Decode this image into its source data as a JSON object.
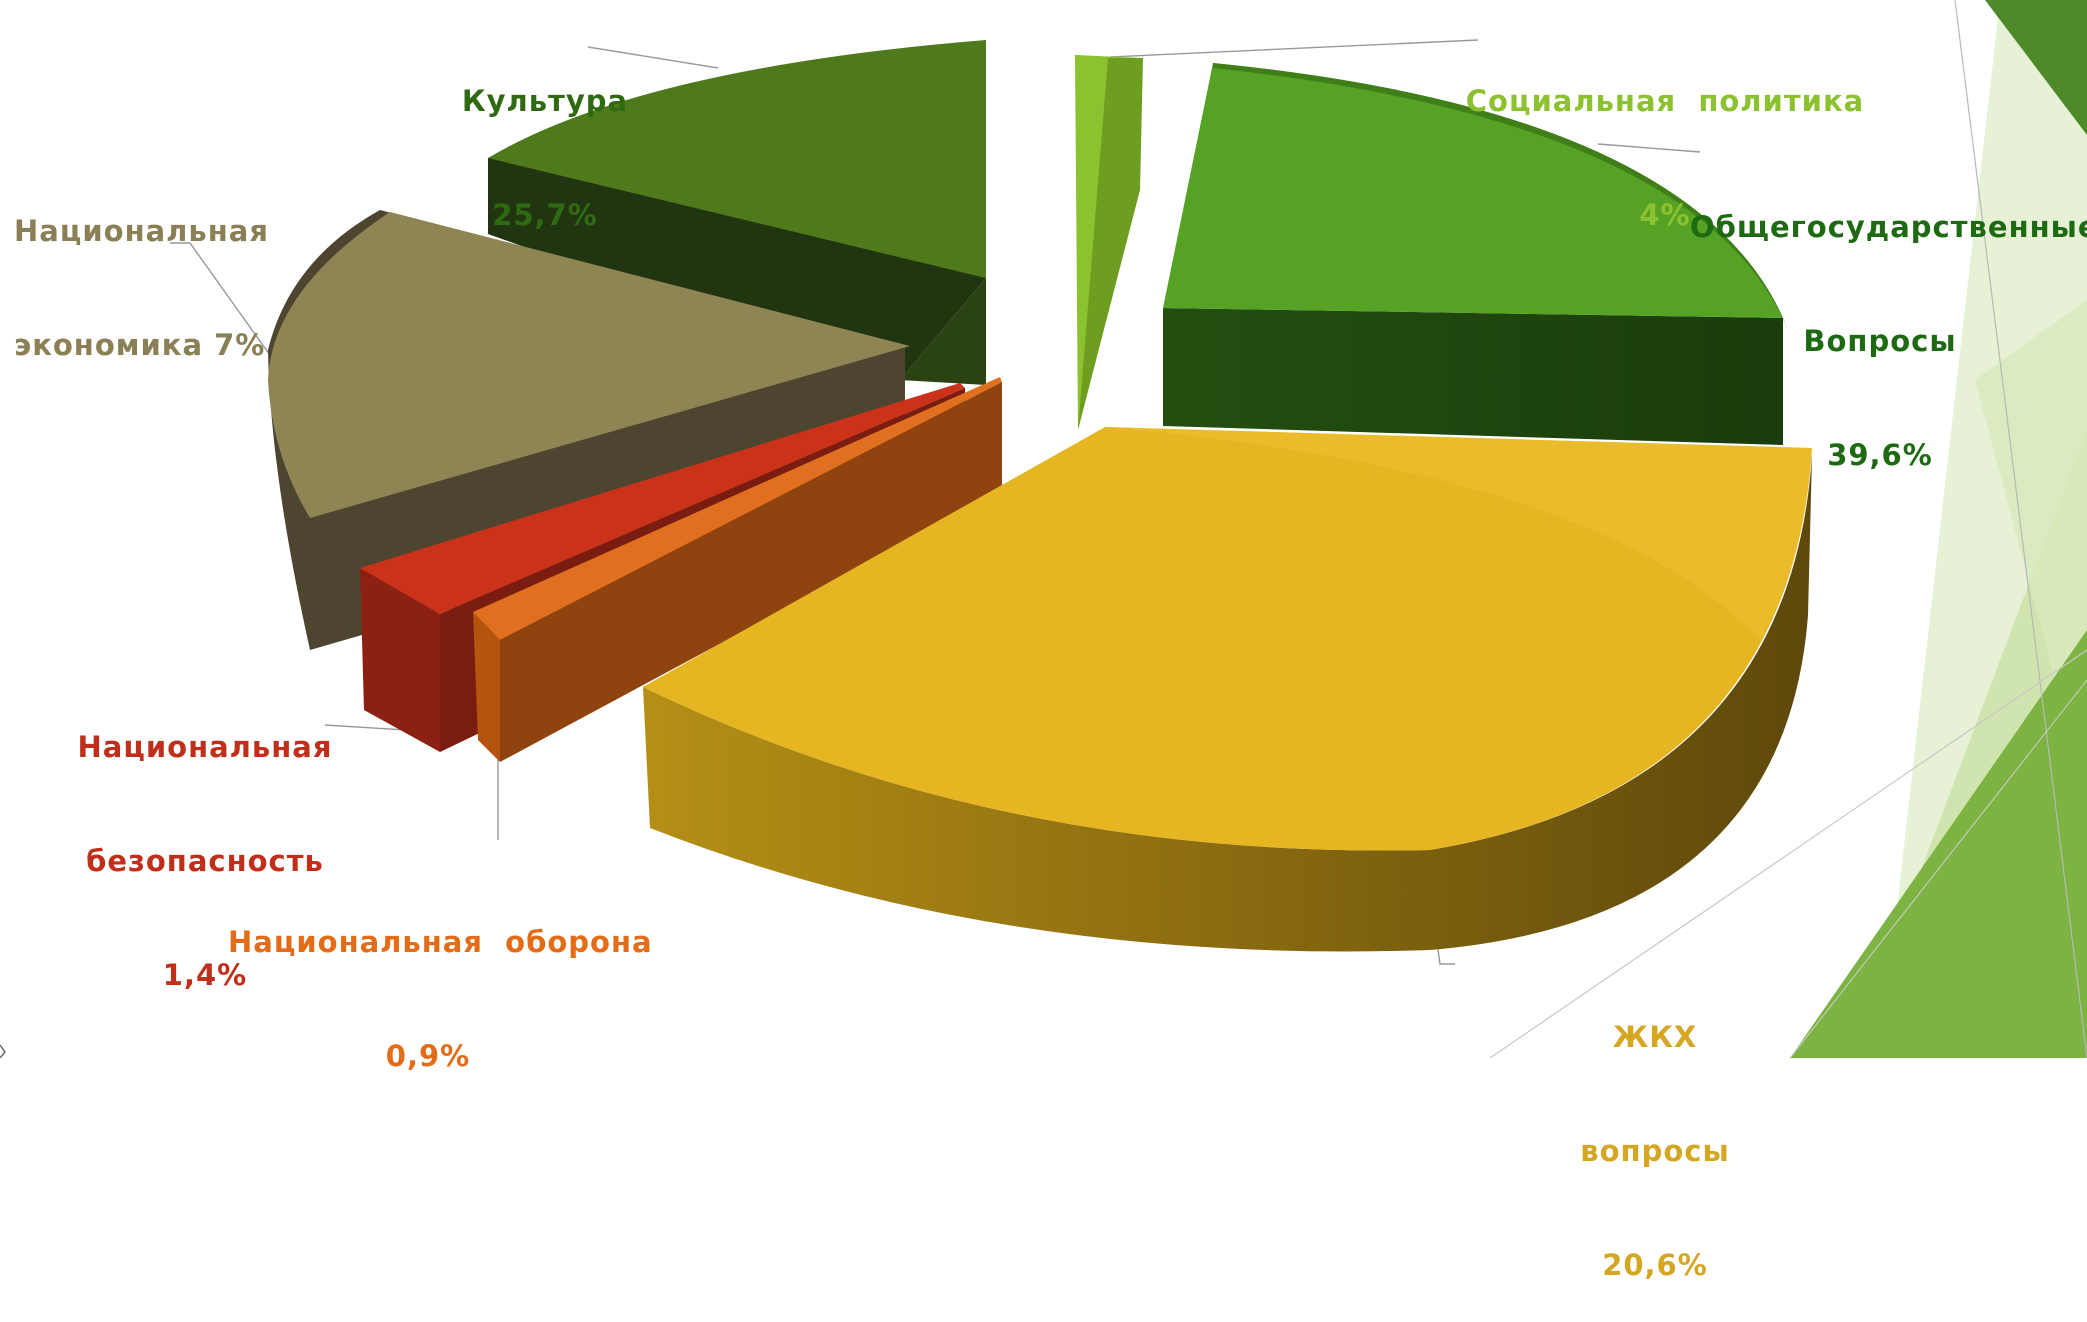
{
  "chart_data": {
    "type": "pie",
    "style": "3d-exploded",
    "slices": [
      {
        "key": "culture",
        "label_lines": [
          "Культура",
          "25,7%"
        ],
        "value": 25.7,
        "color": "#4e7a1c"
      },
      {
        "key": "social",
        "label_lines": [
          "Социальная  политика",
          "4%"
        ],
        "value": 4,
        "color": "#8cc22f"
      },
      {
        "key": "general",
        "label_lines": [
          "Общегосударственные",
          "Вопросы",
          "39,6%"
        ],
        "value": 39.6,
        "color": "#56a225"
      },
      {
        "key": "housing",
        "label_lines": [
          "ЖКХ",
          "вопросы",
          "20,6%"
        ],
        "value": 20.6,
        "color": "#e6b622"
      },
      {
        "key": "defense",
        "label_lines": [
          "Национальная  оборона",
          "0,9%"
        ],
        "value": 0.9,
        "color": "#e0701f"
      },
      {
        "key": "security",
        "label_lines": [
          "Национальная",
          "безопасность",
          "1,4%"
        ],
        "value": 1.4,
        "color": "#cb321a"
      },
      {
        "key": "economy",
        "label_lines": [
          "Национальная",
          "экономика 7%"
        ],
        "value": 7,
        "color": "#8f8454"
      }
    ]
  },
  "colors": {
    "culture_label": "#2f6a12",
    "social_label": "#8cc22f",
    "general_label": "#1d6a12",
    "housing_label": "#d5a621",
    "defense_label": "#e46c17",
    "security_label": "#c12e1a",
    "economy_label": "#8a7f55",
    "deco_dark": "#4e8a2a",
    "deco_mid": "#7db342",
    "deco_light": "#cfe4ae"
  }
}
